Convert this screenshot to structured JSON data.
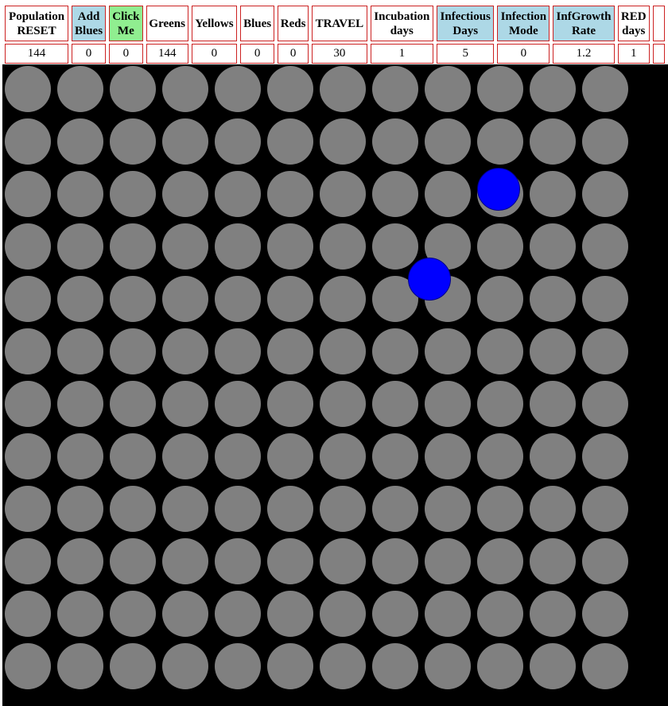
{
  "controls": {
    "population": {
      "label_line1": "Population",
      "label_line2": "RESET",
      "value": "144"
    },
    "add_blues": {
      "label_line1": "Add",
      "label_line2": "Blues",
      "value": "0"
    },
    "click_me": {
      "label_line1": "Click",
      "label_line2": "Me",
      "value": "0"
    },
    "greens": {
      "label": "Greens",
      "value": "144"
    },
    "yellows": {
      "label": "Yellows",
      "value": "0"
    },
    "blues": {
      "label": "Blues",
      "value": "0"
    },
    "reds": {
      "label": "Reds",
      "value": "0"
    },
    "travel": {
      "label": "TRAVEL",
      "value": "30"
    },
    "incubation_days": {
      "label_line1": "Incubation",
      "label_line2": "days",
      "value": "1"
    },
    "infectious_days": {
      "label_line1": "Infectious",
      "label_line2": "Days",
      "value": "5"
    },
    "infection_mode": {
      "label_line1": "Infection",
      "label_line2": "Mode",
      "value": "0"
    },
    "inf_growth_rate": {
      "label_line1": "InfGrowth",
      "label_line2": "Rate",
      "value": "1.2"
    },
    "red_days": {
      "label_line1": "RED",
      "label_line2": "days",
      "value": "1"
    }
  },
  "field": {
    "rows": 12,
    "cols": 12,
    "background": "#000000",
    "person_color": "#808080",
    "blue_color": "#0000ff"
  }
}
